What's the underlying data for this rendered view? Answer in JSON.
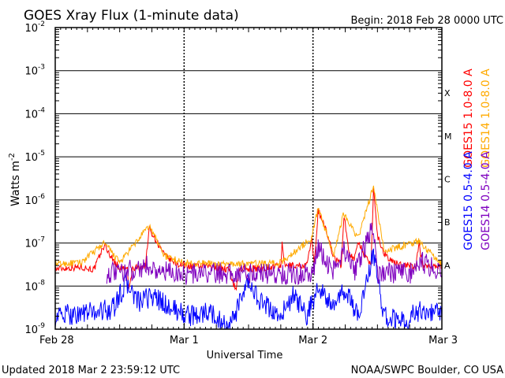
{
  "chart_data": {
    "type": "line",
    "title": "GOES Xray Flux (1-minute data)",
    "begin_label": "Begin:  2018 Feb 28 0000 UTC",
    "xlabel": "Universal Time",
    "ylabel": "Watts m",
    "ylabel_sup": "-2",
    "x_days": [
      0,
      3
    ],
    "x_ticks": [
      {
        "label": "Feb 28",
        "day": 0
      },
      {
        "label": "Mar 1",
        "day": 1
      },
      {
        "label": "Mar 2",
        "day": 2
      },
      {
        "label": "Mar 3",
        "day": 3
      }
    ],
    "y_scale": "log",
    "ylim": [
      1e-09,
      0.01
    ],
    "y_ticks": [
      {
        "mant": "10",
        "exp": "-2",
        "value": 0.01
      },
      {
        "mant": "10",
        "exp": "-3",
        "value": 0.001
      },
      {
        "mant": "10",
        "exp": "-4",
        "value": 0.0001
      },
      {
        "mant": "10",
        "exp": "-5",
        "value": 1e-05
      },
      {
        "mant": "10",
        "exp": "-6",
        "value": 1e-06
      },
      {
        "mant": "10",
        "exp": "-7",
        "value": 1e-07
      },
      {
        "mant": "10",
        "exp": "-8",
        "value": 1e-08
      },
      {
        "mant": "10",
        "exp": "-9",
        "value": 1e-09
      }
    ],
    "flare_classes": [
      {
        "label": "X",
        "value": 0.0001
      },
      {
        "label": "M",
        "value": 1e-05
      },
      {
        "label": "C",
        "value": 1e-06
      },
      {
        "label": "B",
        "value": 1e-07
      },
      {
        "label": "A",
        "value": 1e-08
      }
    ],
    "series": [
      {
        "name": "GOES15 1.0-8.0 A",
        "color": "#ff0000",
        "points": [
          [
            0,
            2.5e-08
          ],
          [
            0.2,
            2.8e-08
          ],
          [
            0.3,
            2.4e-08
          ],
          [
            0.38,
            9e-08
          ],
          [
            0.45,
            4e-08
          ],
          [
            0.5,
            2.6e-08
          ],
          [
            0.56,
            2.5e-08
          ],
          [
            0.57,
            8e-09
          ],
          [
            0.6,
            2.5e-08
          ],
          [
            0.7,
            3e-08
          ],
          [
            0.73,
            2.2e-07
          ],
          [
            0.78,
            1.2e-07
          ],
          [
            0.85,
            5e-08
          ],
          [
            0.95,
            3.2e-08
          ],
          [
            1.1,
            2.8e-08
          ],
          [
            1.2,
            2.9e-08
          ],
          [
            1.35,
            2.4e-08
          ],
          [
            1.4,
            8e-09
          ],
          [
            1.43,
            2.5e-08
          ],
          [
            1.6,
            2.6e-08
          ],
          [
            1.75,
            3e-08
          ],
          [
            1.76,
            9e-08
          ],
          [
            1.78,
            3e-08
          ],
          [
            1.95,
            3e-08
          ],
          [
            1.99,
            1.2e-07
          ],
          [
            2.01,
            3e-08
          ],
          [
            2.04,
            6e-07
          ],
          [
            2.1,
            2e-07
          ],
          [
            2.16,
            5e-08
          ],
          [
            2.22,
            3e-08
          ],
          [
            2.24,
            4.5e-07
          ],
          [
            2.28,
            6e-08
          ],
          [
            2.32,
            4e-08
          ],
          [
            2.35,
            1.2e-07
          ],
          [
            2.4,
            5e-08
          ],
          [
            2.45,
            3e-08
          ],
          [
            2.47,
            2e-06
          ],
          [
            2.5,
            1.5e-07
          ],
          [
            2.55,
            6e-08
          ],
          [
            2.62,
            3.5e-08
          ],
          [
            2.8,
            2.8e-08
          ],
          [
            2.82,
            1e-07
          ],
          [
            2.85,
            3e-08
          ],
          [
            3,
            2.8e-08
          ]
        ]
      },
      {
        "name": "GOES14 1.0-8.0 A",
        "color": "#ffaa00",
        "points": [
          [
            0,
            3.2e-08
          ],
          [
            0.2,
            3.5e-08
          ],
          [
            0.38,
            1e-07
          ],
          [
            0.5,
            3.5e-08
          ],
          [
            0.73,
            2.5e-07
          ],
          [
            0.85,
            5e-08
          ],
          [
            1.0,
            3.5e-08
          ],
          [
            1.3,
            3.2e-08
          ],
          [
            1.5,
            3.3e-08
          ],
          [
            1.75,
            3.5e-08
          ],
          [
            1.99,
            1.3e-07
          ],
          [
            2.04,
            6.5e-07
          ],
          [
            2.16,
            5.5e-08
          ],
          [
            2.24,
            5e-07
          ],
          [
            2.35,
            1.3e-07
          ],
          [
            2.47,
            2.1e-06
          ],
          [
            2.55,
            6.5e-08
          ],
          [
            2.82,
            1.1e-07
          ],
          [
            3,
            3.3e-08
          ]
        ]
      },
      {
        "name": "GOES15 0.5-4.0 A",
        "color": "#0000ff",
        "points": [
          [
            0,
            2e-09
          ],
          [
            0.3,
            2.5e-09
          ],
          [
            0.45,
            3e-09
          ],
          [
            0.55,
            1.2e-08
          ],
          [
            0.65,
            4e-09
          ],
          [
            0.75,
            6e-09
          ],
          [
            0.9,
            3e-09
          ],
          [
            1.05,
            2e-09
          ],
          [
            1.2,
            2.5e-09
          ],
          [
            1.35,
            1e-09
          ],
          [
            1.5,
            1.2e-08
          ],
          [
            1.6,
            4e-09
          ],
          [
            1.75,
            2e-09
          ],
          [
            1.85,
            6e-09
          ],
          [
            1.95,
            2e-09
          ],
          [
            2.05,
            1e-08
          ],
          [
            2.15,
            3e-09
          ],
          [
            2.25,
            8e-09
          ],
          [
            2.35,
            2e-09
          ],
          [
            2.47,
            6e-08
          ],
          [
            2.55,
            2e-09
          ],
          [
            2.7,
            1.5e-09
          ],
          [
            2.85,
            3e-09
          ],
          [
            3,
            2e-09
          ]
        ]
      },
      {
        "name": "GOES14 0.5-4.0 A",
        "color": "#7f00bf",
        "points": [
          [
            0.4,
            2e-08
          ],
          [
            0.5,
            2e-08
          ],
          [
            0.73,
            3e-08
          ],
          [
            0.8,
            2.2e-08
          ],
          [
            1.0,
            1.9e-08
          ],
          [
            1.3,
            2e-08
          ],
          [
            1.6,
            2e-08
          ],
          [
            1.8,
            1.9e-08
          ],
          [
            2.0,
            2e-08
          ],
          [
            2.04,
            8e-08
          ],
          [
            2.15,
            2.2e-08
          ],
          [
            2.24,
            7e-08
          ],
          [
            2.32,
            2e-08
          ],
          [
            2.47,
            2.5e-07
          ],
          [
            2.5,
            2e-08
          ],
          [
            2.8,
            2e-08
          ],
          [
            2.82,
            4e-08
          ],
          [
            3,
            2e-08
          ]
        ]
      }
    ]
  },
  "footer": {
    "updated": "Updated 2018 Mar  2 23:59:12 UTC",
    "source": "NOAA/SWPC Boulder, CO USA"
  }
}
